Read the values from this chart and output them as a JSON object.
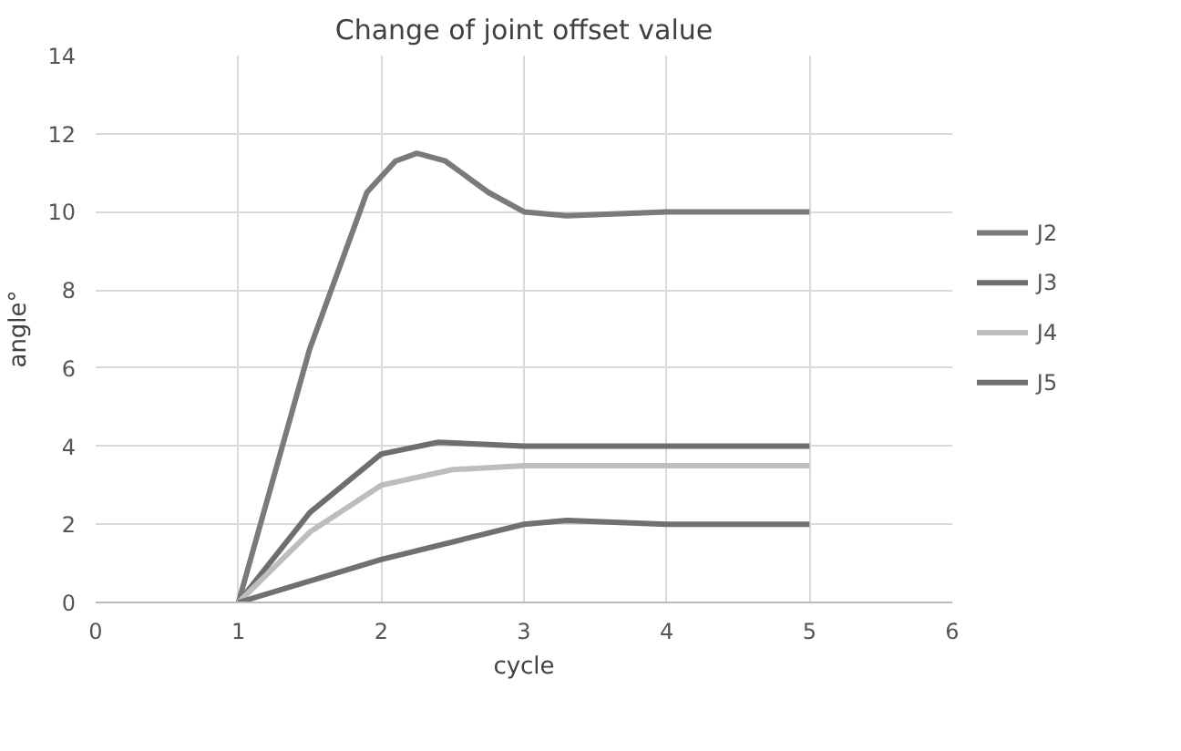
{
  "chart_data": {
    "type": "line",
    "title": "Change of joint offset value",
    "xlabel": "cycle",
    "ylabel": "angle°",
    "xlim": [
      0,
      6
    ],
    "xticks": [
      0,
      1,
      2,
      3,
      4,
      5,
      6
    ],
    "ylim": [
      0,
      14
    ],
    "yticks": [
      0,
      2,
      4,
      6,
      8,
      10,
      12,
      14
    ],
    "grid": true,
    "legend": "right",
    "marker": "none",
    "line_style": "solid",
    "series": [
      {
        "name": "J2",
        "color": "#7a7a7a",
        "x": [
          1,
          1.5,
          1.9,
          2.1,
          2.25,
          2.45,
          2.75,
          3,
          3.3,
          4,
          5
        ],
        "values": [
          0,
          6.5,
          10.5,
          11.3,
          11.5,
          11.3,
          10.5,
          10,
          9.9,
          10,
          10
        ]
      },
      {
        "name": "J3",
        "color": "#6e6e6e",
        "x": [
          1,
          1.5,
          2,
          2.4,
          3,
          4,
          5
        ],
        "values": [
          0,
          2.3,
          3.8,
          4.1,
          4,
          4,
          4
        ]
      },
      {
        "name": "J4",
        "color": "#bdbdbd",
        "x": [
          1,
          1.5,
          2,
          2.5,
          3,
          3.5,
          4,
          5
        ],
        "values": [
          0,
          1.8,
          3,
          3.4,
          3.5,
          3.5,
          3.5,
          3.5
        ]
      },
      {
        "name": "J5",
        "color": "#707070",
        "x": [
          1,
          2,
          3,
          3.3,
          4,
          5
        ],
        "values": [
          0,
          1.1,
          2,
          2.1,
          2,
          2
        ]
      }
    ]
  }
}
